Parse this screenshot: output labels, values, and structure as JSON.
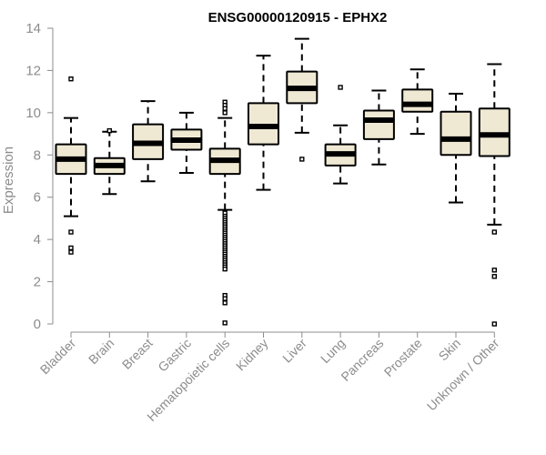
{
  "chart_data": {
    "type": "boxplot",
    "title": "ENSG00000120915 - EPHX2",
    "xlabel": "",
    "ylabel": "Expression",
    "ylim": [
      0,
      14
    ],
    "yticks": [
      0,
      2,
      4,
      6,
      8,
      10,
      12,
      14
    ],
    "grid": false,
    "box_fill": "#efe9d4",
    "categories": [
      "Bladder",
      "Brain",
      "Breast",
      "Gastric",
      "Hematopoietic cells",
      "Kidney",
      "Liver",
      "Lung",
      "Pancreas",
      "Prostate",
      "Skin",
      "Unknown / Other"
    ],
    "boxes": [
      {
        "min": 5.1,
        "q1": 7.1,
        "median": 7.8,
        "q3": 8.5,
        "max": 9.75,
        "outliers": [
          11.6,
          4.35,
          3.6,
          3.4
        ]
      },
      {
        "min": 6.15,
        "q1": 7.1,
        "median": 7.5,
        "q3": 7.85,
        "max": 9.1,
        "outliers": [
          9.15
        ]
      },
      {
        "min": 6.75,
        "q1": 7.8,
        "median": 8.55,
        "q3": 9.45,
        "max": 10.55,
        "outliers": []
      },
      {
        "min": 7.15,
        "q1": 8.25,
        "median": 8.7,
        "q3": 9.2,
        "max": 10.0,
        "outliers": []
      },
      {
        "min": 5.4,
        "q1": 7.1,
        "median": 7.75,
        "q3": 8.3,
        "max": 9.75,
        "outliers": [
          10.5,
          10.35,
          10.2,
          10.0,
          5.25,
          5.1,
          5.0,
          4.9,
          4.8,
          4.7,
          4.6,
          4.5,
          4.4,
          4.3,
          4.2,
          4.1,
          4.0,
          3.9,
          3.8,
          3.7,
          3.6,
          3.5,
          3.4,
          3.3,
          3.2,
          3.1,
          3.0,
          2.9,
          2.8,
          2.7,
          2.6,
          1.35,
          1.2,
          1.0,
          0.05
        ]
      },
      {
        "min": 6.35,
        "q1": 8.5,
        "median": 9.35,
        "q3": 10.45,
        "max": 12.7,
        "outliers": []
      },
      {
        "min": 9.05,
        "q1": 10.45,
        "median": 11.15,
        "q3": 11.95,
        "max": 13.5,
        "outliers": [
          7.8
        ]
      },
      {
        "min": 6.65,
        "q1": 7.5,
        "median": 8.05,
        "q3": 8.5,
        "max": 9.4,
        "outliers": [
          11.2
        ]
      },
      {
        "min": 7.55,
        "q1": 8.75,
        "median": 9.65,
        "q3": 10.1,
        "max": 11.05,
        "outliers": []
      },
      {
        "min": 9.0,
        "q1": 10.05,
        "median": 10.4,
        "q3": 11.1,
        "max": 12.05,
        "outliers": []
      },
      {
        "min": 5.75,
        "q1": 8.0,
        "median": 8.75,
        "q3": 10.05,
        "max": 10.9,
        "outliers": []
      },
      {
        "min": 4.7,
        "q1": 7.95,
        "median": 8.95,
        "q3": 10.2,
        "max": 12.3,
        "outliers": [
          4.35,
          2.55,
          2.25,
          0.0
        ]
      }
    ]
  }
}
